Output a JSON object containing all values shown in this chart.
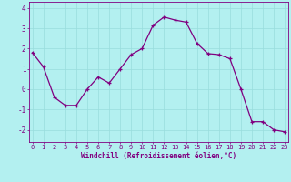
{
  "x": [
    0,
    1,
    2,
    3,
    4,
    5,
    6,
    7,
    8,
    9,
    10,
    11,
    12,
    13,
    14,
    15,
    16,
    17,
    18,
    19,
    20,
    21,
    22,
    23
  ],
  "y": [
    1.8,
    1.1,
    -0.4,
    -0.8,
    -0.8,
    0.0,
    0.6,
    0.3,
    1.0,
    1.7,
    2.0,
    3.15,
    3.55,
    3.4,
    3.3,
    2.25,
    1.75,
    1.7,
    1.5,
    0.0,
    -1.6,
    -1.6,
    -2.0,
    -2.1
  ],
  "line_color": "#800080",
  "marker": "+",
  "marker_color": "#800080",
  "bg_color": "#b3f0f0",
  "grid_color": "#99dddd",
  "xlabel": "Windchill (Refroidissement éolien,°C)",
  "xlabel_color": "#800080",
  "yticks": [
    -2,
    -1,
    0,
    1,
    2,
    3,
    4
  ],
  "xticks": [
    0,
    1,
    2,
    3,
    4,
    5,
    6,
    7,
    8,
    9,
    10,
    11,
    12,
    13,
    14,
    15,
    16,
    17,
    18,
    19,
    20,
    21,
    22,
    23
  ],
  "ylim": [
    -2.6,
    4.3
  ],
  "xlim": [
    -0.3,
    23.3
  ],
  "tick_color": "#800080",
  "spine_color": "#800080",
  "tick_fontsize": 5.0,
  "xlabel_fontsize": 5.5,
  "linewidth": 0.9,
  "markersize": 3.5
}
